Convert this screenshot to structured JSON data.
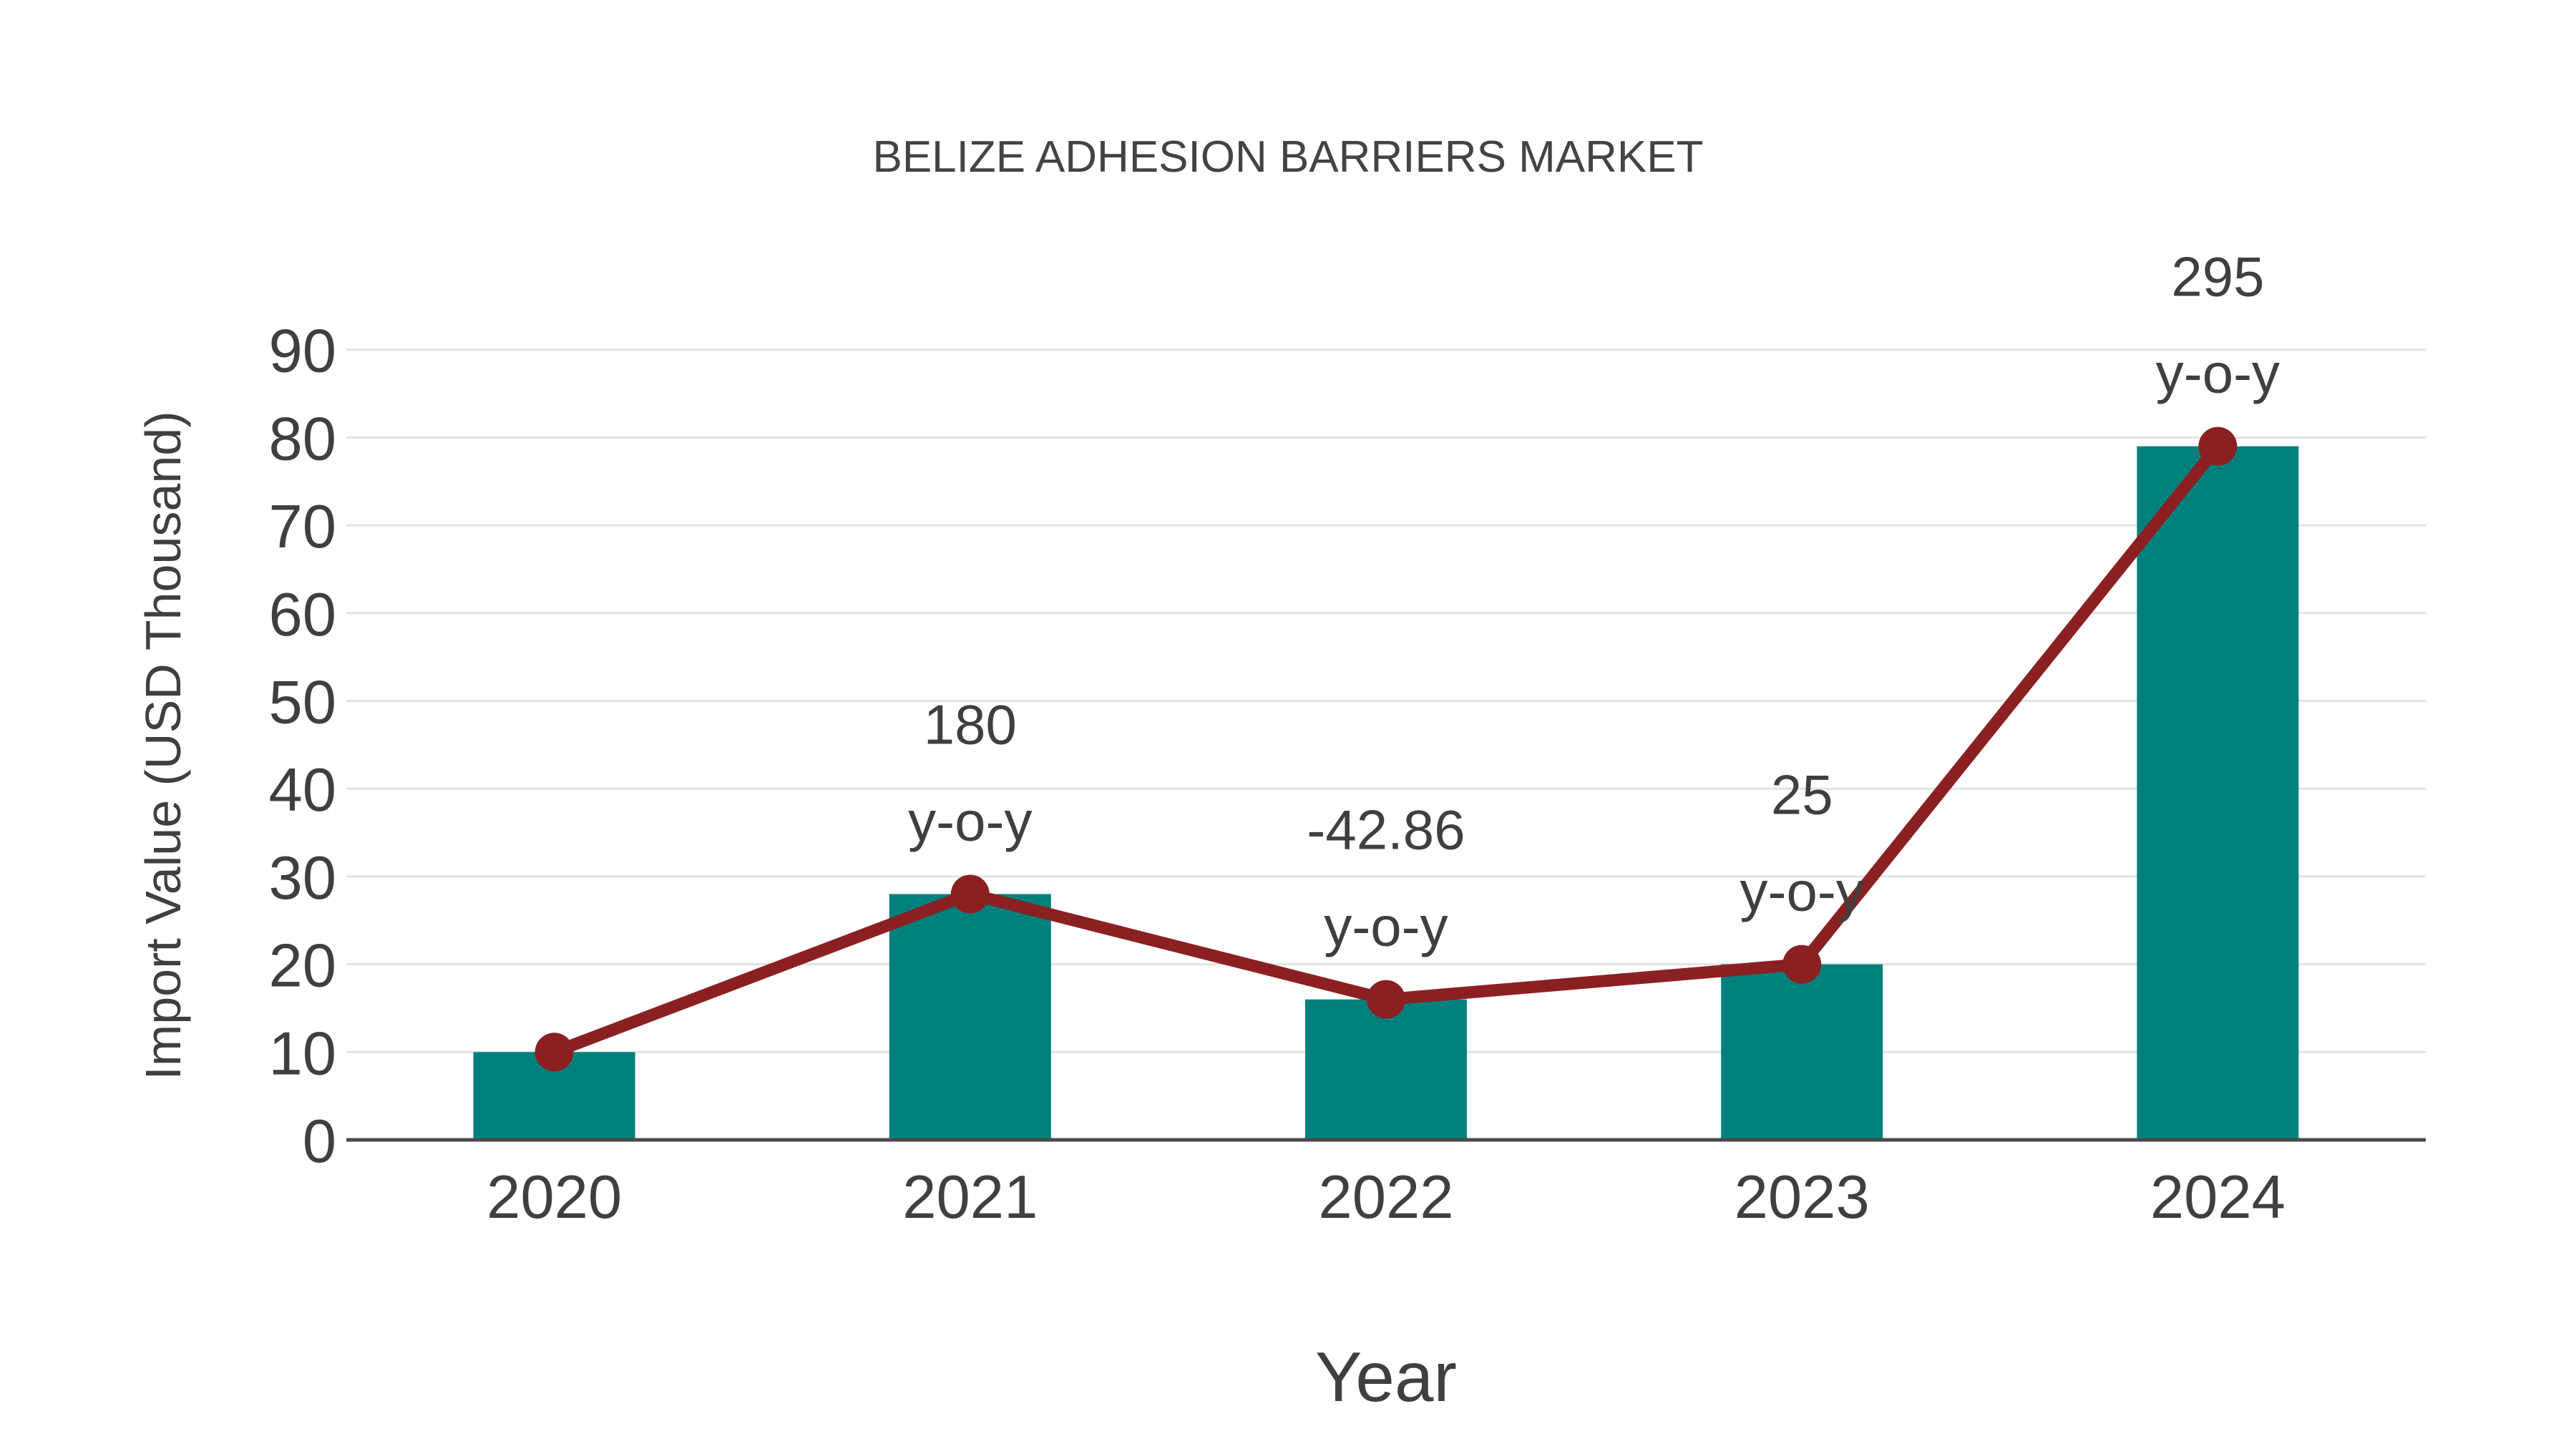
{
  "chart_data": {
    "type": "bar",
    "subtype": "bar-line-combo",
    "title": "BELIZE ADHESION BARRIERS MARKET",
    "xlabel": "Year",
    "ylabel": "Import Value (USD Thousand)",
    "categories": [
      "2020",
      "2021",
      "2022",
      "2023",
      "2024"
    ],
    "series": [
      {
        "name": "import-value-bars",
        "type": "bar",
        "color": "#00807C",
        "values": [
          10,
          28,
          16,
          20,
          79
        ]
      },
      {
        "name": "import-value-line",
        "type": "line",
        "color": "#8B2022",
        "marker": "circle",
        "values": [
          10,
          28,
          16,
          20,
          79
        ]
      }
    ],
    "annotations": [
      {
        "category": "2021",
        "value_label": "180",
        "suffix_label": "y-o-y"
      },
      {
        "category": "2022",
        "value_label": "-42.86",
        "suffix_label": "y-o-y"
      },
      {
        "category": "2023",
        "value_label": "25",
        "suffix_label": "y-o-y"
      },
      {
        "category": "2024",
        "value_label": "295",
        "suffix_label": "y-o-y"
      }
    ],
    "ylim": [
      0,
      90
    ],
    "yticks": [
      0,
      10,
      20,
      30,
      40,
      50,
      60,
      70,
      80,
      90
    ],
    "grid": true,
    "legend": false,
    "colors": {
      "background": "#ffffff",
      "bar": "#00807C",
      "line": "#8B2022",
      "marker": "#8B2022",
      "gridline": "#E3E3E3",
      "axis_line": "#4A4A4A",
      "title_text": "#434343",
      "label_text": "#3F3F3F"
    }
  }
}
